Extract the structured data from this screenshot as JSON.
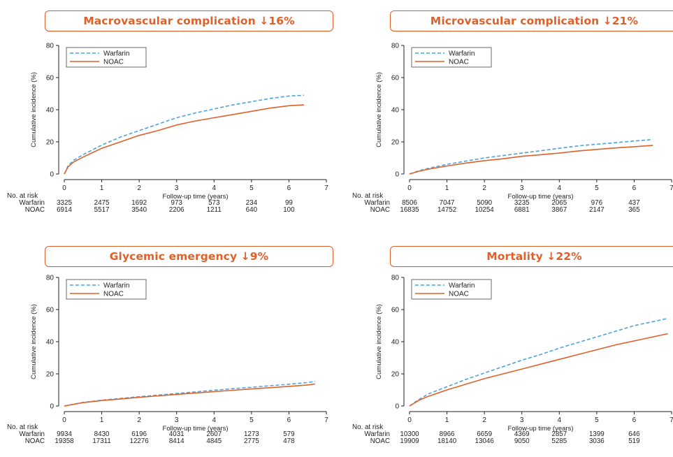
{
  "colors": {
    "warfarin": "#4aa3df",
    "noac": "#e0602a",
    "banner": "#e0602a"
  },
  "chart_data": [
    {
      "type": "line",
      "title": "Macrovascular complication ↓16%",
      "xlabel": "Follow-up time (years)",
      "ylabel": "Cumulative incidence (%)",
      "xlim": [
        0,
        7
      ],
      "ylim": [
        0,
        80
      ],
      "xticks": [
        "0",
        "1",
        "2",
        "3",
        "4",
        "5",
        "6",
        "7"
      ],
      "yticks": [
        "0",
        "20",
        "40",
        "60",
        "80"
      ],
      "legend": [
        "Warfarin",
        "NOAC"
      ],
      "series": [
        {
          "name": "Warfarin",
          "style": "dashed",
          "x": [
            0,
            0.1,
            0.25,
            0.5,
            1,
            1.5,
            2,
            2.5,
            3,
            3.5,
            4,
            4.5,
            5,
            5.5,
            6,
            6.4
          ],
          "y": [
            0,
            5,
            8.5,
            12,
            18,
            23,
            27,
            31,
            35,
            38,
            40.5,
            43,
            45,
            47,
            48.5,
            49
          ]
        },
        {
          "name": "NOAC",
          "style": "solid",
          "x": [
            0,
            0.1,
            0.25,
            0.5,
            1,
            1.5,
            2,
            2.5,
            3,
            3.5,
            4,
            4.5,
            5,
            5.5,
            6,
            6.4
          ],
          "y": [
            0,
            4.5,
            7.5,
            10.5,
            16,
            20,
            24,
            27,
            30.5,
            33,
            35,
            37,
            39,
            41,
            42.5,
            43
          ]
        }
      ],
      "risk_table": {
        "header": "No. at risk",
        "rows": [
          {
            "label": "Warfarin",
            "values": [
              "3325",
              "2475",
              "1692",
              "973",
              "573",
              "234",
              "99"
            ]
          },
          {
            "label": "NOAC",
            "values": [
              "6914",
              "5517",
              "3540",
              "2206",
              "1211",
              "640",
              "100"
            ]
          }
        ]
      }
    },
    {
      "type": "line",
      "title": "Microvascular complication ↓21%",
      "xlabel": "Follow-up time (years)",
      "ylabel": "Cumulative incidence (%)",
      "xlim": [
        0,
        7
      ],
      "ylim": [
        0,
        80
      ],
      "xticks": [
        "0",
        "1",
        "2",
        "3",
        "4",
        "5",
        "6",
        "7"
      ],
      "yticks": [
        "0",
        "20",
        "40",
        "60",
        "80"
      ],
      "legend": [
        "Warfarin",
        "NOAC"
      ],
      "series": [
        {
          "name": "Warfarin",
          "style": "dashed",
          "x": [
            0,
            0.25,
            0.5,
            1,
            1.5,
            2,
            2.5,
            3,
            3.5,
            4,
            4.5,
            5,
            5.5,
            6,
            6.5
          ],
          "y": [
            0,
            2,
            3.5,
            6,
            8,
            10,
            11.5,
            13,
            14.5,
            16,
            17.5,
            18.5,
            19.5,
            20.5,
            21.5
          ]
        },
        {
          "name": "NOAC",
          "style": "solid",
          "x": [
            0,
            0.25,
            0.5,
            1,
            1.5,
            2,
            2.5,
            3,
            3.5,
            4,
            4.5,
            5,
            5.5,
            6,
            6.5
          ],
          "y": [
            0,
            1.7,
            3,
            5,
            6.8,
            8.3,
            9.5,
            11,
            12,
            13,
            14.3,
            15.3,
            16.2,
            17,
            17.8
          ]
        }
      ],
      "risk_table": {
        "header": "No. at risk",
        "rows": [
          {
            "label": "Warfarin",
            "values": [
              "8506",
              "7047",
              "5090",
              "3235",
              "2065",
              "976",
              "437"
            ]
          },
          {
            "label": "NOAC",
            "values": [
              "16835",
              "14752",
              "10254",
              "6881",
              "3867",
              "2147",
              "365"
            ]
          }
        ]
      }
    },
    {
      "type": "line",
      "title": "Glycemic emergency ↓9%",
      "xlabel": "Follow-up time (years)",
      "ylabel": "Cumulative incidence (%)",
      "xlim": [
        0,
        7
      ],
      "ylim": [
        0,
        80
      ],
      "xticks": [
        "0",
        "1",
        "2",
        "3",
        "4",
        "5",
        "6",
        "7"
      ],
      "yticks": [
        "0",
        "20",
        "40",
        "60",
        "80"
      ],
      "legend": [
        "Warfarin",
        "NOAC"
      ],
      "series": [
        {
          "name": "Warfarin",
          "style": "dashed",
          "x": [
            0,
            0.5,
            1,
            1.5,
            2,
            2.5,
            3,
            3.5,
            4,
            4.5,
            5,
            5.5,
            6,
            6.5,
            6.7
          ],
          "y": [
            0,
            2.2,
            3.6,
            4.7,
            5.8,
            6.8,
            7.8,
            8.8,
            9.8,
            10.8,
            11.7,
            12.6,
            13.5,
            14.6,
            15.2
          ]
        },
        {
          "name": "NOAC",
          "style": "solid",
          "x": [
            0,
            0.5,
            1,
            1.5,
            2,
            2.5,
            3,
            3.5,
            4,
            4.5,
            5,
            5.5,
            6,
            6.5,
            6.7
          ],
          "y": [
            0,
            2.1,
            3.4,
            4.4,
            5.4,
            6.3,
            7.2,
            8.1,
            8.9,
            9.8,
            10.6,
            11.4,
            12.2,
            13.1,
            13.7
          ]
        }
      ],
      "risk_table": {
        "header": "No. at risk",
        "rows": [
          {
            "label": "Warfarin",
            "values": [
              "9934",
              "8430",
              "6196",
              "4031",
              "2607",
              "1273",
              "579"
            ]
          },
          {
            "label": "NOAC",
            "values": [
              "19358",
              "17311",
              "12276",
              "8414",
              "4845",
              "2775",
              "478"
            ]
          }
        ]
      }
    },
    {
      "type": "line",
      "title": "Mortality ↓22%",
      "xlabel": "Follow-up time (years)",
      "ylabel": "Cumulative incidence (%)",
      "xlim": [
        0,
        7
      ],
      "ylim": [
        0,
        80
      ],
      "xticks": [
        "0",
        "1",
        "2",
        "3",
        "4",
        "5",
        "6",
        "7"
      ],
      "yticks": [
        "0",
        "20",
        "40",
        "60",
        "80"
      ],
      "legend": [
        "Warfarin",
        "NOAC"
      ],
      "series": [
        {
          "name": "Warfarin",
          "style": "dashed",
          "x": [
            0,
            0.25,
            0.5,
            1,
            1.5,
            2,
            2.5,
            3,
            3.5,
            4,
            4.5,
            5,
            5.5,
            6,
            6.5,
            6.9
          ],
          "y": [
            0,
            4,
            7.5,
            12,
            16.5,
            20.5,
            24.5,
            28.5,
            32,
            36,
            39.5,
            43,
            46.5,
            50,
            52.5,
            54.5
          ]
        },
        {
          "name": "NOAC",
          "style": "solid",
          "x": [
            0,
            0.25,
            0.5,
            1,
            1.5,
            2,
            2.5,
            3,
            3.5,
            4,
            4.5,
            5,
            5.5,
            6,
            6.5,
            6.9
          ],
          "y": [
            0,
            3.5,
            6,
            10,
            13.5,
            17,
            20,
            23,
            26,
            29,
            32,
            35,
            38,
            40.5,
            43,
            45
          ]
        }
      ],
      "risk_table": {
        "header": "No. at risk",
        "rows": [
          {
            "label": "Warfarin",
            "values": [
              "10300",
              "8966",
              "6659",
              "4369",
              "2857",
              "1399",
              "646"
            ]
          },
          {
            "label": "NOAC",
            "values": [
              "19909",
              "18140",
              "13046",
              "9050",
              "5285",
              "3036",
              "519"
            ]
          }
        ]
      }
    }
  ]
}
